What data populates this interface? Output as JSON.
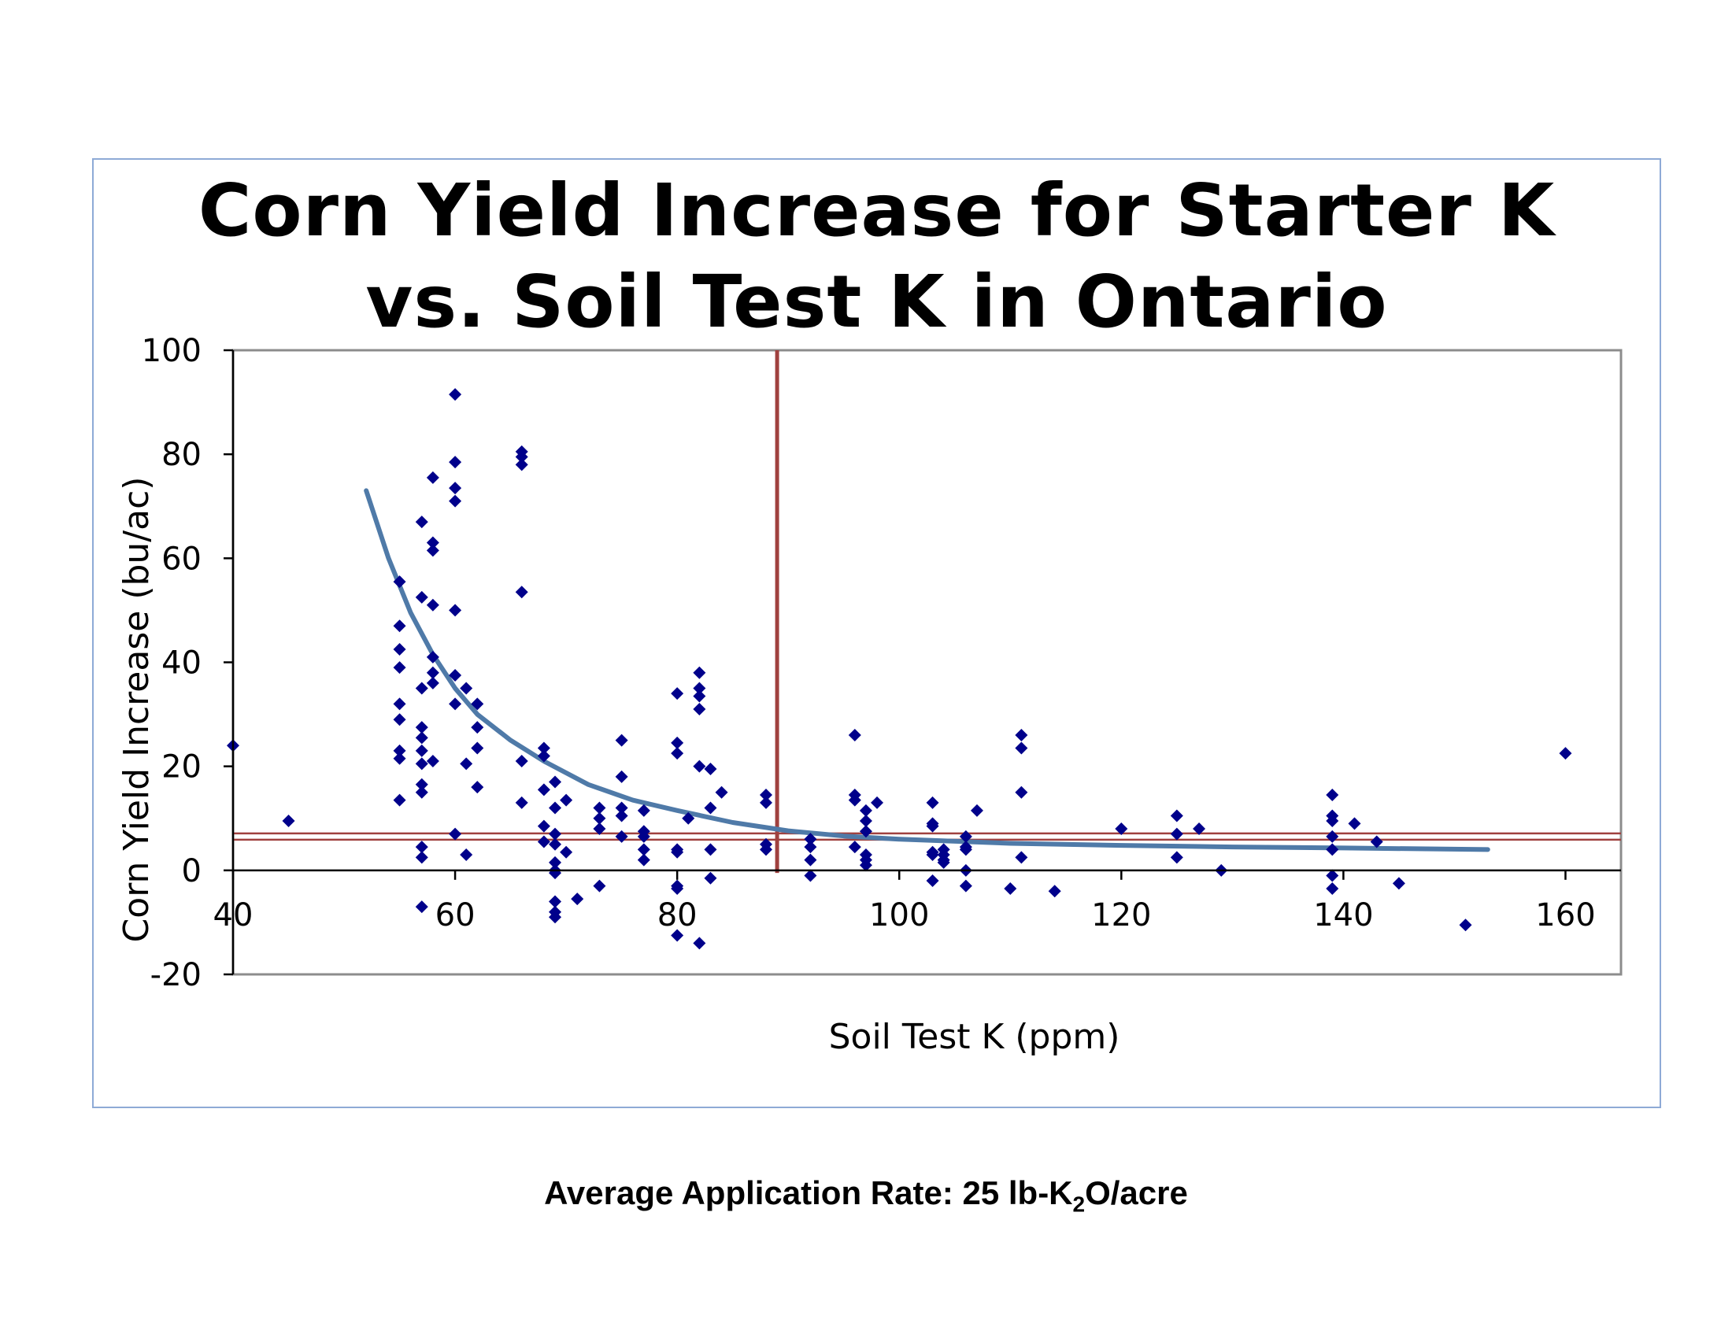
{
  "chart_data": {
    "type": "scatter",
    "title_lines": [
      "Corn Yield Increase for Starter K",
      "vs. Soil Test K in Ontario"
    ],
    "xlabel": "Soil Test K (ppm)",
    "ylabel": "Corn Yield Increase (bu/ac)",
    "xlim": [
      40,
      165
    ],
    "ylim": [
      -20,
      100
    ],
    "x_ticks": [
      40,
      60,
      80,
      100,
      120,
      140,
      160
    ],
    "y_ticks": [
      -20,
      0,
      20,
      40,
      60,
      80,
      100
    ],
    "grid": false,
    "legend": "none",
    "marker_color": "#00008b",
    "trend_color": "#4f7aa8",
    "reference_line_color": "#a0413f",
    "series": [
      {
        "points": [
          [
            40,
            24
          ],
          [
            45,
            9.5
          ],
          [
            55,
            55.5
          ],
          [
            55,
            47
          ],
          [
            55,
            42.5
          ],
          [
            55,
            39
          ],
          [
            55,
            32
          ],
          [
            55,
            29
          ],
          [
            55,
            23
          ],
          [
            55,
            21.5
          ],
          [
            55,
            13.5
          ],
          [
            57,
            67
          ],
          [
            57,
            52.5
          ],
          [
            57,
            35
          ],
          [
            57,
            27.5
          ],
          [
            57,
            25.5
          ],
          [
            57,
            23
          ],
          [
            57,
            20.5
          ],
          [
            57,
            16.5
          ],
          [
            57,
            15
          ],
          [
            57,
            4.5
          ],
          [
            57,
            2.5
          ],
          [
            57,
            -7
          ],
          [
            58,
            75.5
          ],
          [
            58,
            63
          ],
          [
            58,
            61.5
          ],
          [
            58,
            51
          ],
          [
            58,
            41
          ],
          [
            58,
            38
          ],
          [
            58,
            36
          ],
          [
            58,
            21
          ],
          [
            60,
            91.5
          ],
          [
            60,
            78.5
          ],
          [
            60,
            73.5
          ],
          [
            60,
            71
          ],
          [
            60,
            50
          ],
          [
            60,
            37.5
          ],
          [
            60,
            32
          ],
          [
            60,
            7
          ],
          [
            61,
            35
          ],
          [
            61,
            20.5
          ],
          [
            61,
            3
          ],
          [
            62,
            32
          ],
          [
            62,
            27.5
          ],
          [
            62,
            23.5
          ],
          [
            62,
            16
          ],
          [
            66,
            80.5
          ],
          [
            66,
            79.5
          ],
          [
            66,
            78
          ],
          [
            66,
            53.5
          ],
          [
            66,
            21
          ],
          [
            66,
            13
          ],
          [
            68,
            23.5
          ],
          [
            68,
            22
          ],
          [
            68,
            15.5
          ],
          [
            68,
            8.5
          ],
          [
            68,
            5.5
          ],
          [
            69,
            17
          ],
          [
            69,
            12
          ],
          [
            69,
            7
          ],
          [
            69,
            5
          ],
          [
            69,
            1.5
          ],
          [
            69,
            0
          ],
          [
            69,
            -0.5
          ],
          [
            69,
            -6
          ],
          [
            69,
            -8
          ],
          [
            69,
            -9
          ],
          [
            70,
            13.5
          ],
          [
            70,
            3.5
          ],
          [
            71,
            -5.5
          ],
          [
            73,
            12
          ],
          [
            73,
            10
          ],
          [
            73,
            8
          ],
          [
            73,
            -3
          ],
          [
            75,
            25
          ],
          [
            75,
            18
          ],
          [
            75,
            12
          ],
          [
            75,
            10.5
          ],
          [
            75,
            6.5
          ],
          [
            77,
            11.5
          ],
          [
            77,
            7.5
          ],
          [
            77,
            6.5
          ],
          [
            77,
            4
          ],
          [
            77,
            2
          ],
          [
            80,
            34
          ],
          [
            80,
            24.5
          ],
          [
            80,
            22.5
          ],
          [
            80,
            4
          ],
          [
            80,
            3.5
          ],
          [
            80,
            -3
          ],
          [
            80,
            -3.5
          ],
          [
            80,
            -12.5
          ],
          [
            81,
            10
          ],
          [
            82,
            38
          ],
          [
            82,
            35
          ],
          [
            82,
            33.5
          ],
          [
            82,
            31
          ],
          [
            82,
            20
          ],
          [
            82,
            -14
          ],
          [
            83,
            19.5
          ],
          [
            83,
            12
          ],
          [
            83,
            4
          ],
          [
            83,
            -1.5
          ],
          [
            84,
            15
          ],
          [
            88,
            14.5
          ],
          [
            88,
            13
          ],
          [
            88,
            5
          ],
          [
            88,
            4
          ],
          [
            92,
            6
          ],
          [
            92,
            4.5
          ],
          [
            92,
            2
          ],
          [
            92,
            -1
          ],
          [
            96,
            26
          ],
          [
            96,
            14.5
          ],
          [
            96,
            13.5
          ],
          [
            96,
            4.5
          ],
          [
            97,
            11.5
          ],
          [
            97,
            9.5
          ],
          [
            97,
            7.5
          ],
          [
            97,
            3
          ],
          [
            97,
            2
          ],
          [
            97,
            1
          ],
          [
            98,
            13
          ],
          [
            103,
            13
          ],
          [
            103,
            9
          ],
          [
            103,
            8.5
          ],
          [
            103,
            3.5
          ],
          [
            103,
            3
          ],
          [
            103,
            -2
          ],
          [
            104,
            4
          ],
          [
            104,
            3
          ],
          [
            104,
            2
          ],
          [
            104,
            1.5
          ],
          [
            106,
            6.5
          ],
          [
            106,
            4.5
          ],
          [
            106,
            4
          ],
          [
            106,
            0
          ],
          [
            106,
            -3
          ],
          [
            107,
            11.5
          ],
          [
            110,
            -3.5
          ],
          [
            111,
            26
          ],
          [
            111,
            23.5
          ],
          [
            111,
            15
          ],
          [
            111,
            2.5
          ],
          [
            114,
            -4
          ],
          [
            120,
            8
          ],
          [
            125,
            10.5
          ],
          [
            125,
            7
          ],
          [
            125,
            2.5
          ],
          [
            127,
            8
          ],
          [
            129,
            0
          ],
          [
            139,
            14.5
          ],
          [
            139,
            10.5
          ],
          [
            139,
            9.5
          ],
          [
            139,
            6.5
          ],
          [
            139,
            4
          ],
          [
            139,
            -1
          ],
          [
            139,
            -3.5
          ],
          [
            141,
            9
          ],
          [
            143,
            5.5
          ],
          [
            145,
            -2.5
          ],
          [
            151,
            -10.5
          ],
          [
            160,
            22.5
          ]
        ]
      }
    ],
    "trendline": {
      "type": "power-fit",
      "points": [
        [
          52,
          73
        ],
        [
          54,
          60
        ],
        [
          56,
          49.5
        ],
        [
          58,
          41.5
        ],
        [
          60,
          35
        ],
        [
          62,
          30
        ],
        [
          65,
          25
        ],
        [
          68,
          21
        ],
        [
          72,
          16.5
        ],
        [
          76,
          13.5
        ],
        [
          80,
          11.5
        ],
        [
          85,
          9.2
        ],
        [
          90,
          7.6
        ],
        [
          95,
          6.6
        ],
        [
          100,
          6
        ],
        [
          110,
          5.2
        ],
        [
          120,
          4.8
        ],
        [
          130,
          4.5
        ],
        [
          140,
          4.3
        ],
        [
          153,
          4
        ]
      ]
    },
    "reference_lines": [
      {
        "orientation": "vertical",
        "x": 89
      },
      {
        "orientation": "horizontal",
        "y": 6.5
      }
    ]
  },
  "footnote": {
    "prefix": "Average Application Rate:  25 lb-K",
    "subscript": "2",
    "suffix": "O/acre"
  }
}
